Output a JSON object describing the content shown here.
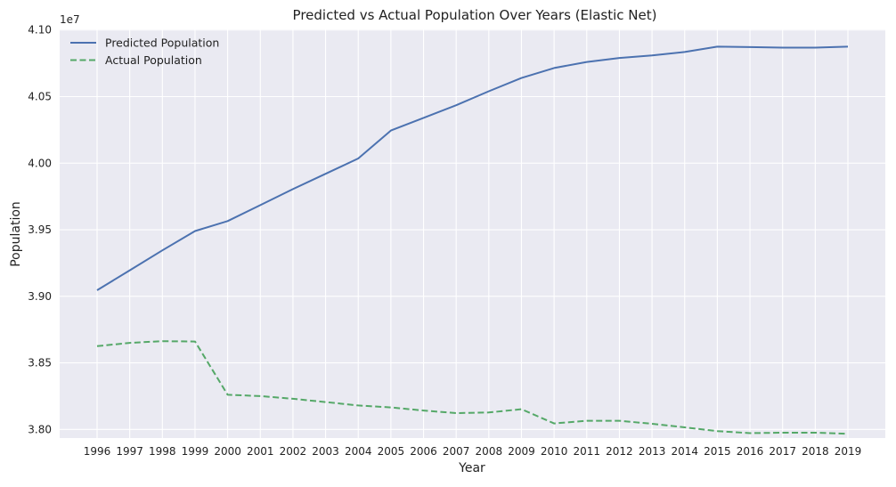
{
  "chart_data": {
    "type": "line",
    "title": "Predicted vs Actual Population Over Years (Elastic Net)",
    "xlabel": "Year",
    "ylabel": "Population",
    "y_exponent_label": "1e7",
    "x": [
      "1996",
      "1997",
      "1998",
      "1999",
      "2000",
      "2001",
      "2002",
      "2003",
      "2004",
      "2005",
      "2006",
      "2007",
      "2008",
      "2009",
      "2010",
      "2011",
      "2012",
      "2013",
      "2014",
      "2015",
      "2016",
      "2017",
      "2018",
      "2019"
    ],
    "ylim": [
      3.7935,
      4.1005
    ],
    "yticks": [
      3.8,
      3.85,
      3.9,
      3.95,
      4.0,
      4.05,
      4.1
    ],
    "ytick_labels": [
      "3.80",
      "3.85",
      "3.90",
      "3.95",
      "4.00",
      "4.05",
      "4.10"
    ],
    "scale": 10000000,
    "grid": true,
    "legend_position": "top-left",
    "series": [
      {
        "name": "Predicted Population",
        "style": "solid",
        "color": "#4c72b0",
        "values": [
          3.9045,
          3.9195,
          3.9345,
          3.949,
          3.9565,
          3.9685,
          3.9805,
          3.992,
          4.0035,
          4.0245,
          4.034,
          4.0435,
          4.054,
          4.064,
          4.0715,
          4.076,
          4.079,
          4.081,
          4.0835,
          4.0875,
          4.0872,
          4.0868,
          4.0868,
          4.0875
        ]
      },
      {
        "name": "Actual Population",
        "style": "dashed",
        "color": "#55a868",
        "values": [
          3.8625,
          3.865,
          3.8663,
          3.866,
          3.826,
          3.825,
          3.823,
          3.8205,
          3.818,
          3.8165,
          3.8142,
          3.8122,
          3.8127,
          3.8152,
          3.8045,
          3.8065,
          3.8065,
          3.8042,
          3.8015,
          3.7987,
          3.7972,
          3.7975,
          3.7975,
          3.7967
        ]
      }
    ]
  },
  "colors": {
    "plot_background": "#eaeaf2",
    "grid": "#ffffff"
  }
}
